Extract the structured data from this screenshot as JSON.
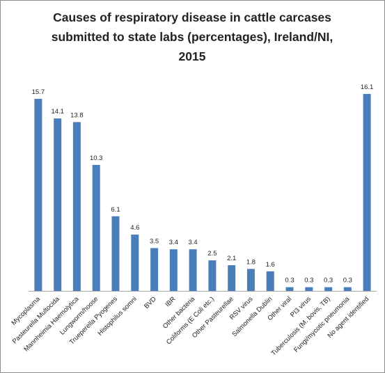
{
  "chart_data": {
    "type": "bar",
    "title_lines": [
      "Causes of respiratory disease in cattle carcases",
      "submitted to state labs (percentages), Ireland/NI,",
      "2015"
    ],
    "categories": [
      "Mycoplasma",
      "Pasteurella Multocida",
      "Mannheimia Haemolytica",
      "Lungworm/hoose",
      "Trueperella Pyogenes",
      "Histophilus somni",
      "BVD",
      "IBR",
      "Other bacteria",
      "Coliforms (E Coli etc.)",
      "Other Pasteurellae",
      "RSV virus",
      "Salmonella Dublin",
      "Other viral",
      "PI3 virus",
      "Tuberculosis (M. bovis, TB)",
      "Fungi/mycotic pneumonia",
      "No agent identified"
    ],
    "values": [
      15.7,
      14.1,
      13.8,
      10.3,
      6.1,
      4.6,
      3.5,
      3.4,
      3.4,
      2.5,
      2.1,
      1.8,
      1.6,
      0.3,
      0.3,
      0.3,
      0.3,
      16.1
    ],
    "value_labels": [
      "15.7",
      "14.1",
      "13.8",
      "10.3",
      "6.1",
      "4.6",
      "3.5",
      "3.4",
      "3.4",
      "2.5",
      "2.1",
      "1.8",
      "1.6",
      "0.3",
      "0.3",
      "0.3",
      "0.3",
      "16.1"
    ],
    "bar_color": "#4a7ebb",
    "axis_color": "#a6a6a6",
    "ylim": [
      0,
      16.1
    ],
    "grid": false,
    "legend": "none",
    "xlabel": "",
    "ylabel": ""
  }
}
